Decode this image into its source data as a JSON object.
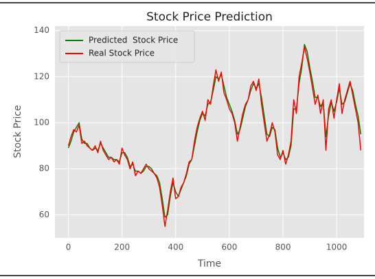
{
  "chart_data": {
    "type": "line",
    "title": "Stock Price Prediction",
    "x_label": "Time",
    "y_label": "Stock Price",
    "x": [
      0,
      10,
      20,
      30,
      40,
      50,
      60,
      70,
      80,
      90,
      100,
      110,
      120,
      130,
      140,
      150,
      160,
      170,
      180,
      190,
      200,
      210,
      220,
      230,
      240,
      250,
      260,
      270,
      280,
      290,
      300,
      310,
      320,
      330,
      340,
      350,
      360,
      370,
      380,
      390,
      400,
      410,
      420,
      430,
      440,
      450,
      460,
      470,
      480,
      490,
      500,
      510,
      520,
      530,
      540,
      550,
      560,
      570,
      580,
      590,
      600,
      610,
      620,
      630,
      640,
      650,
      660,
      670,
      680,
      690,
      700,
      710,
      720,
      730,
      740,
      750,
      760,
      770,
      780,
      790,
      800,
      810,
      820,
      830,
      840,
      850,
      860,
      870,
      880,
      890,
      900,
      910,
      920,
      930,
      940,
      950,
      960,
      970,
      980,
      990,
      1000,
      1010,
      1020,
      1030,
      1040,
      1050,
      1060,
      1070,
      1080,
      1090
    ],
    "series": [
      {
        "name": "Predicted  Stock Price",
        "color": "#008000",
        "values": [
          89,
          92,
          96,
          98,
          100,
          93,
          91,
          91,
          89,
          88,
          89,
          88,
          91,
          89,
          87,
          85,
          85,
          84,
          84,
          83,
          87,
          87,
          85,
          81,
          82,
          79,
          79,
          78,
          79,
          81,
          81,
          80,
          78,
          77,
          74,
          67,
          59,
          60,
          68,
          74,
          70,
          68,
          71,
          74,
          77,
          82,
          84,
          90,
          96,
          101,
          104,
          103,
          108,
          109,
          114,
          120,
          119,
          121,
          116,
          111,
          108,
          105,
          101,
          95,
          97,
          102,
          107,
          110,
          114,
          117,
          115,
          117,
          111,
          103,
          95,
          94,
          98,
          97,
          89,
          85,
          87,
          84,
          85,
          90,
          106,
          106,
          117,
          124,
          134,
          131,
          124,
          118,
          111,
          111,
          107,
          109,
          94,
          103,
          109,
          105,
          109,
          115,
          108,
          109,
          113,
          117,
          114,
          108,
          103,
          95
        ]
      },
      {
        "name": "Real Stock Price",
        "color": "#ff0000",
        "values": [
          90,
          94,
          97,
          96,
          99,
          91,
          92,
          90,
          89,
          88,
          90,
          87,
          92,
          88,
          86,
          84,
          85,
          83,
          84,
          82,
          89,
          86,
          84,
          80,
          83,
          77,
          79,
          78,
          80,
          82,
          80,
          79,
          78,
          76,
          72,
          64,
          55,
          62,
          70,
          76,
          67,
          68,
          72,
          74,
          78,
          83,
          84,
          92,
          98,
          102,
          105,
          101,
          110,
          108,
          116,
          123,
          118,
          122,
          113,
          110,
          106,
          104,
          100,
          92,
          98,
          104,
          108,
          110,
          116,
          118,
          114,
          119,
          108,
          100,
          92,
          95,
          100,
          96,
          86,
          84,
          88,
          82,
          86,
          92,
          110,
          104,
          120,
          126,
          133,
          128,
          122,
          115,
          108,
          112,
          104,
          110,
          88,
          106,
          110,
          102,
          110,
          117,
          104,
          110,
          114,
          118,
          112,
          106,
          100,
          88
        ]
      }
    ],
    "xlim": [
      -50,
      1102
    ],
    "ylim": [
      50,
      142
    ],
    "xticks": [
      0,
      200,
      400,
      600,
      800,
      1000
    ],
    "yticks": [
      60,
      80,
      100,
      120,
      140
    ],
    "grid": true,
    "legend": "upper left"
  }
}
